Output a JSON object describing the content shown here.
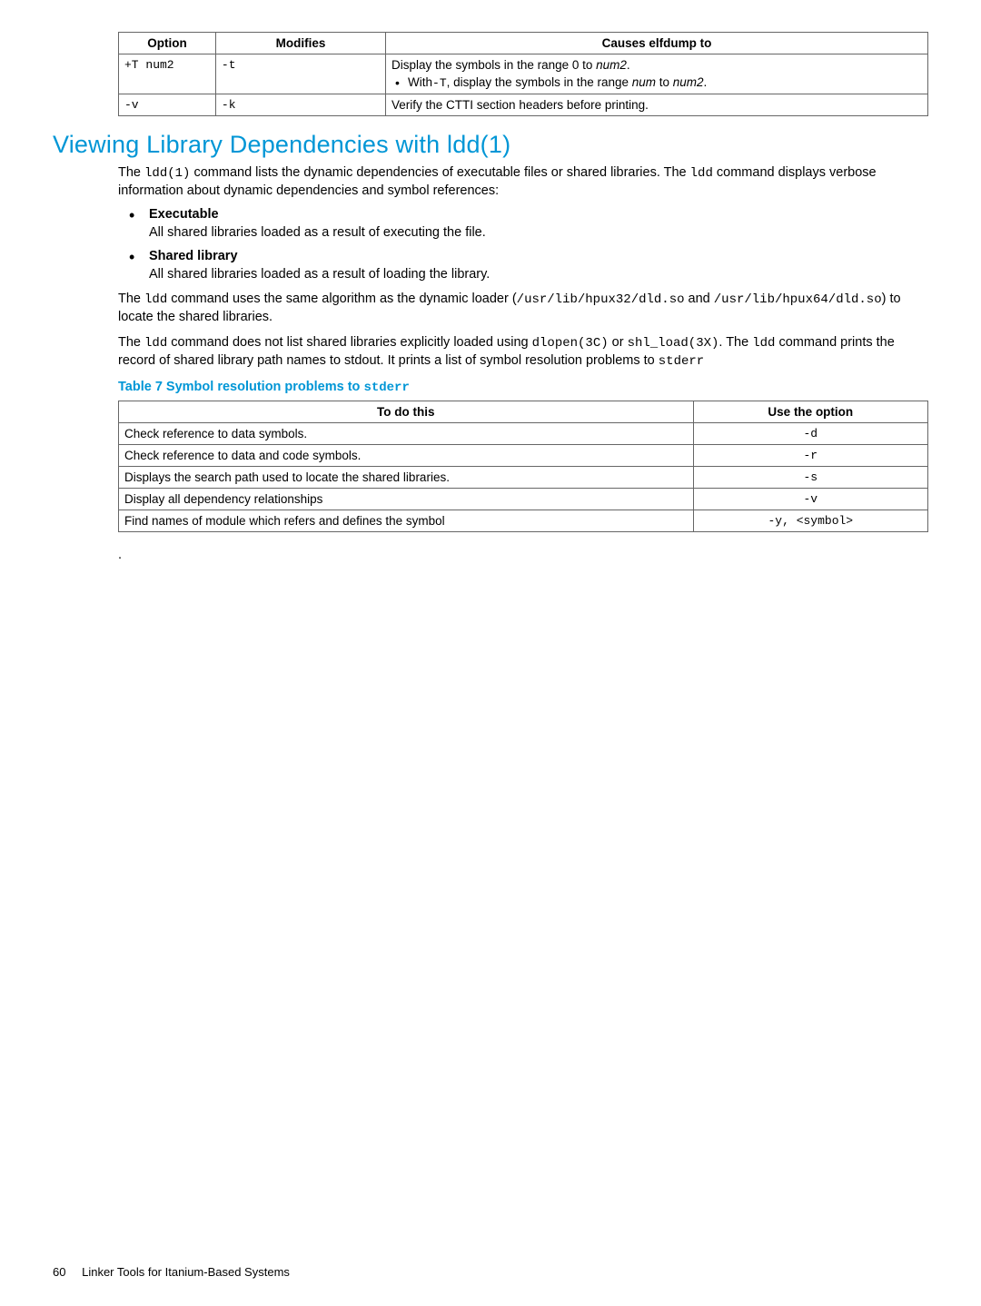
{
  "table1": {
    "headers": [
      "Option",
      "Modifies",
      "Causes elfdump to"
    ],
    "rows": [
      {
        "option": "+T num2",
        "modifies": "-t",
        "desc_line1_pre": "Display the symbols in the range 0 to ",
        "desc_line1_em": "num2",
        "desc_line1_post": ".",
        "bullet_pre": "With",
        "bullet_code": "-T",
        "bullet_mid": ", display the symbols in the range ",
        "bullet_em1": "num",
        "bullet_to": " to ",
        "bullet_em2": "num2",
        "bullet_post": "."
      },
      {
        "option": "-v",
        "modifies": "-k",
        "desc": "Verify the CTTI section headers before printing."
      }
    ]
  },
  "heading": "Viewing Library Dependencies with ldd(1)",
  "intro": {
    "pre1": "The ",
    "code1": "ldd(1)",
    "mid1": " command lists the dynamic dependencies of executable files or shared libraries. The ",
    "code2": "ldd",
    "post1": " command displays verbose information about dynamic dependencies and symbol references:"
  },
  "bullets": [
    {
      "title": "Executable",
      "body": "All shared libraries loaded as a result of executing the file."
    },
    {
      "title": "Shared library",
      "body": "All shared libraries loaded as a result of loading the library."
    }
  ],
  "para2": {
    "pre": "The ",
    "code1": "ldd",
    "mid1": " command uses the same algorithm as the dynamic loader (",
    "code2": "/usr/lib/hpux32/dld.so",
    "mid2": " and ",
    "code3": "/usr/lib/hpux64/dld.so",
    "post": ") to locate the shared libraries."
  },
  "para3": {
    "pre": "The ",
    "c1": "ldd",
    "t1": " command does not list shared libraries explicitly loaded using ",
    "c2": "dlopen(3C)",
    "t2": " or ",
    "c3": "shl_load(3X)",
    "t3": ". The ",
    "c4": "ldd",
    "t4": " command prints the record of shared library path names to stdout. It prints a list of symbol resolution problems to ",
    "c5": "stderr"
  },
  "table2_caption_pre": "Table 7 Symbol resolution problems to ",
  "table2_caption_code": "stderr",
  "table2": {
    "headers": [
      "To do this",
      "Use the option"
    ],
    "rows": [
      {
        "desc": "Check reference to data symbols.",
        "opt": "-d"
      },
      {
        "desc": "Check reference to data and code symbols.",
        "opt": "-r"
      },
      {
        "desc": "Displays the search path used to locate the shared libraries.",
        "opt": "-s"
      },
      {
        "desc": "Display all dependency relationships",
        "opt": "-v"
      },
      {
        "desc": "Find names of module which refers and defines the symbol",
        "opt": "-y, <symbol>"
      }
    ]
  },
  "trailing_dot": ".",
  "footer": {
    "page": "60",
    "title": "Linker Tools for Itanium-Based Systems"
  }
}
